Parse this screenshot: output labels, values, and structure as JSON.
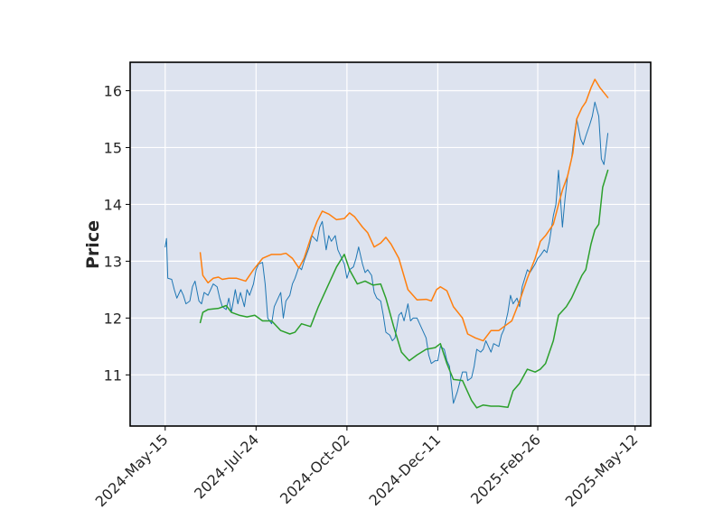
{
  "chart_data": {
    "type": "line",
    "title": "",
    "xlabel": "",
    "ylabel": "Price",
    "x_axis_kind": "date",
    "xlim": [
      "2024-04-18",
      "2025-05-24"
    ],
    "ylim": [
      10.1,
      16.5
    ],
    "grid": true,
    "legend": "none",
    "x_ticks": [
      {
        "date": "2024-05-15",
        "label": "2024-May-15"
      },
      {
        "date": "2024-07-24",
        "label": "2024-Jul-24"
      },
      {
        "date": "2024-10-02",
        "label": "2024-Oct-02"
      },
      {
        "date": "2024-12-11",
        "label": "2024-Dec-11"
      },
      {
        "date": "2025-02-26",
        "label": "2025-Feb-26"
      },
      {
        "date": "2025-05-12",
        "label": "2025-May-12"
      }
    ],
    "y_ticks": [
      {
        "value": 11,
        "label": "11"
      },
      {
        "value": 12,
        "label": "12"
      },
      {
        "value": 13,
        "label": "13"
      },
      {
        "value": 14,
        "label": "14"
      },
      {
        "value": 15,
        "label": "15"
      },
      {
        "value": 16,
        "label": "16"
      }
    ],
    "colors": {
      "plot_background": "#dde3ef",
      "grid": "#ffffff",
      "axes_frame": "#000000"
    },
    "series": [
      {
        "color": "#1f77b4",
        "stroke_width": 1.0,
        "points": [
          [
            "2024-05-15",
            13.25
          ],
          [
            "2024-05-16",
            13.4
          ],
          [
            "2024-05-17",
            12.7
          ],
          [
            "2024-05-20",
            12.68
          ],
          [
            "2024-05-22",
            12.5
          ],
          [
            "2024-05-24",
            12.35
          ],
          [
            "2024-05-27",
            12.5
          ],
          [
            "2024-05-29",
            12.4
          ],
          [
            "2024-05-31",
            12.25
          ],
          [
            "2024-06-03",
            12.3
          ],
          [
            "2024-06-05",
            12.55
          ],
          [
            "2024-06-07",
            12.65
          ],
          [
            "2024-06-10",
            12.3
          ],
          [
            "2024-06-12",
            12.25
          ],
          [
            "2024-06-14",
            12.45
          ],
          [
            "2024-06-17",
            12.4
          ],
          [
            "2024-06-19",
            12.5
          ],
          [
            "2024-06-21",
            12.6
          ],
          [
            "2024-06-24",
            12.55
          ],
          [
            "2024-06-26",
            12.35
          ],
          [
            "2024-06-28",
            12.2
          ],
          [
            "2024-07-01",
            12.15
          ],
          [
            "2024-07-03",
            12.35
          ],
          [
            "2024-07-05",
            12.1
          ],
          [
            "2024-07-08",
            12.5
          ],
          [
            "2024-07-10",
            12.25
          ],
          [
            "2024-07-12",
            12.45
          ],
          [
            "2024-07-15",
            12.2
          ],
          [
            "2024-07-17",
            12.5
          ],
          [
            "2024-07-19",
            12.4
          ],
          [
            "2024-07-22",
            12.6
          ],
          [
            "2024-07-24",
            12.85
          ],
          [
            "2024-07-26",
            12.95
          ],
          [
            "2024-07-29",
            12.98
          ],
          [
            "2024-07-31",
            12.6
          ],
          [
            "2024-08-02",
            12.0
          ],
          [
            "2024-08-05",
            11.9
          ],
          [
            "2024-08-07",
            12.2
          ],
          [
            "2024-08-09",
            12.3
          ],
          [
            "2024-08-12",
            12.45
          ],
          [
            "2024-08-14",
            12.0
          ],
          [
            "2024-08-16",
            12.3
          ],
          [
            "2024-08-19",
            12.4
          ],
          [
            "2024-08-21",
            12.6
          ],
          [
            "2024-08-23",
            12.7
          ],
          [
            "2024-08-26",
            12.9
          ],
          [
            "2024-08-28",
            12.85
          ],
          [
            "2024-08-30",
            13.0
          ],
          [
            "2024-09-03",
            13.25
          ],
          [
            "2024-09-05",
            13.45
          ],
          [
            "2024-09-09",
            13.35
          ],
          [
            "2024-09-11",
            13.6
          ],
          [
            "2024-09-13",
            13.7
          ],
          [
            "2024-09-16",
            13.2
          ],
          [
            "2024-09-18",
            13.45
          ],
          [
            "2024-09-20",
            13.35
          ],
          [
            "2024-09-23",
            13.45
          ],
          [
            "2024-09-25",
            13.2
          ],
          [
            "2024-09-27",
            13.1
          ],
          [
            "2024-09-30",
            12.95
          ],
          [
            "2024-10-02",
            12.7
          ],
          [
            "2024-10-04",
            12.85
          ],
          [
            "2024-10-07",
            12.9
          ],
          [
            "2024-10-09",
            13.05
          ],
          [
            "2024-10-11",
            13.25
          ],
          [
            "2024-10-14",
            12.95
          ],
          [
            "2024-10-16",
            12.8
          ],
          [
            "2024-10-18",
            12.85
          ],
          [
            "2024-10-21",
            12.75
          ],
          [
            "2024-10-23",
            12.45
          ],
          [
            "2024-10-25",
            12.35
          ],
          [
            "2024-10-28",
            12.3
          ],
          [
            "2024-10-30",
            12.05
          ],
          [
            "2024-11-01",
            11.75
          ],
          [
            "2024-11-04",
            11.7
          ],
          [
            "2024-11-06",
            11.6
          ],
          [
            "2024-11-08",
            11.65
          ],
          [
            "2024-11-11",
            12.05
          ],
          [
            "2024-11-13",
            12.1
          ],
          [
            "2024-11-15",
            11.95
          ],
          [
            "2024-11-18",
            12.25
          ],
          [
            "2024-11-20",
            11.95
          ],
          [
            "2024-11-22",
            12.0
          ],
          [
            "2024-11-25",
            12.0
          ],
          [
            "2024-11-27",
            11.9
          ],
          [
            "2024-12-02",
            11.65
          ],
          [
            "2024-12-04",
            11.35
          ],
          [
            "2024-12-06",
            11.2
          ],
          [
            "2024-12-09",
            11.25
          ],
          [
            "2024-12-11",
            11.25
          ],
          [
            "2024-12-13",
            11.5
          ],
          [
            "2024-12-16",
            11.45
          ],
          [
            "2024-12-18",
            11.25
          ],
          [
            "2024-12-20",
            11.15
          ],
          [
            "2024-12-23",
            10.5
          ],
          [
            "2024-12-26",
            10.7
          ],
          [
            "2024-12-30",
            11.05
          ],
          [
            "2025-01-02",
            11.05
          ],
          [
            "2025-01-03",
            10.9
          ],
          [
            "2025-01-06",
            10.95
          ],
          [
            "2025-01-08",
            11.15
          ],
          [
            "2025-01-10",
            11.45
          ],
          [
            "2025-01-13",
            11.4
          ],
          [
            "2025-01-15",
            11.45
          ],
          [
            "2025-01-17",
            11.6
          ],
          [
            "2025-01-21",
            11.4
          ],
          [
            "2025-01-23",
            11.55
          ],
          [
            "2025-01-27",
            11.5
          ],
          [
            "2025-01-29",
            11.7
          ],
          [
            "2025-01-31",
            11.8
          ],
          [
            "2025-02-03",
            12.1
          ],
          [
            "2025-02-05",
            12.4
          ],
          [
            "2025-02-07",
            12.25
          ],
          [
            "2025-02-10",
            12.35
          ],
          [
            "2025-02-12",
            12.2
          ],
          [
            "2025-02-14",
            12.55
          ],
          [
            "2025-02-18",
            12.85
          ],
          [
            "2025-02-20",
            12.8
          ],
          [
            "2025-02-24",
            12.95
          ],
          [
            "2025-02-26",
            13.05
          ],
          [
            "2025-02-28",
            13.1
          ],
          [
            "2025-03-03",
            13.2
          ],
          [
            "2025-03-05",
            13.15
          ],
          [
            "2025-03-07",
            13.35
          ],
          [
            "2025-03-10",
            13.8
          ],
          [
            "2025-03-12",
            14.0
          ],
          [
            "2025-03-14",
            14.6
          ],
          [
            "2025-03-17",
            13.6
          ],
          [
            "2025-03-19",
            14.1
          ],
          [
            "2025-03-21",
            14.5
          ],
          [
            "2025-03-24",
            14.8
          ],
          [
            "2025-03-26",
            15.2
          ],
          [
            "2025-03-28",
            15.5
          ],
          [
            "2025-03-31",
            15.15
          ],
          [
            "2025-04-02",
            15.05
          ],
          [
            "2025-04-04",
            15.2
          ],
          [
            "2025-04-07",
            15.4
          ],
          [
            "2025-04-09",
            15.55
          ],
          [
            "2025-04-11",
            15.8
          ],
          [
            "2025-04-14",
            15.55
          ],
          [
            "2025-04-16",
            14.8
          ],
          [
            "2025-04-18",
            14.7
          ],
          [
            "2025-04-21",
            15.25
          ]
        ]
      },
      {
        "color": "#ff7f0e",
        "stroke_width": 1.5,
        "points": [
          [
            "2024-06-11",
            13.15
          ],
          [
            "2024-06-13",
            12.75
          ],
          [
            "2024-06-17",
            12.62
          ],
          [
            "2024-06-21",
            12.7
          ],
          [
            "2024-06-25",
            12.72
          ],
          [
            "2024-06-28",
            12.68
          ],
          [
            "2024-07-03",
            12.7
          ],
          [
            "2024-07-09",
            12.7
          ],
          [
            "2024-07-16",
            12.65
          ],
          [
            "2024-07-22",
            12.85
          ],
          [
            "2024-07-29",
            13.05
          ],
          [
            "2024-08-05",
            13.12
          ],
          [
            "2024-08-12",
            13.12
          ],
          [
            "2024-08-16",
            13.14
          ],
          [
            "2024-08-21",
            13.05
          ],
          [
            "2024-08-26",
            12.88
          ],
          [
            "2024-08-30",
            13.05
          ],
          [
            "2024-09-04",
            13.4
          ],
          [
            "2024-09-09",
            13.7
          ],
          [
            "2024-09-13",
            13.88
          ],
          [
            "2024-09-18",
            13.83
          ],
          [
            "2024-09-24",
            13.73
          ],
          [
            "2024-09-30",
            13.75
          ],
          [
            "2024-10-04",
            13.85
          ],
          [
            "2024-10-08",
            13.78
          ],
          [
            "2024-10-14",
            13.6
          ],
          [
            "2024-10-18",
            13.5
          ],
          [
            "2024-10-23",
            13.25
          ],
          [
            "2024-10-28",
            13.32
          ],
          [
            "2024-11-01",
            13.42
          ],
          [
            "2024-11-05",
            13.3
          ],
          [
            "2024-11-11",
            13.05
          ],
          [
            "2024-11-18",
            12.5
          ],
          [
            "2024-11-25",
            12.32
          ],
          [
            "2024-12-02",
            12.33
          ],
          [
            "2024-12-06",
            12.3
          ],
          [
            "2024-12-10",
            12.5
          ],
          [
            "2024-12-13",
            12.55
          ],
          [
            "2024-12-18",
            12.48
          ],
          [
            "2024-12-23",
            12.2
          ],
          [
            "2024-12-30",
            12.0
          ],
          [
            "2025-01-03",
            11.72
          ],
          [
            "2025-01-09",
            11.65
          ],
          [
            "2025-01-15",
            11.6
          ],
          [
            "2025-01-21",
            11.78
          ],
          [
            "2025-01-27",
            11.78
          ],
          [
            "2025-01-31",
            11.85
          ],
          [
            "2025-02-06",
            11.95
          ],
          [
            "2025-02-12",
            12.3
          ],
          [
            "2025-02-18",
            12.7
          ],
          [
            "2025-02-24",
            13.05
          ],
          [
            "2025-02-28",
            13.35
          ],
          [
            "2025-03-04",
            13.45
          ],
          [
            "2025-03-10",
            13.65
          ],
          [
            "2025-03-14",
            14.0
          ],
          [
            "2025-03-17",
            14.25
          ],
          [
            "2025-03-21",
            14.5
          ],
          [
            "2025-03-25",
            14.9
          ],
          [
            "2025-03-28",
            15.5
          ],
          [
            "2025-04-01",
            15.7
          ],
          [
            "2025-04-04",
            15.8
          ],
          [
            "2025-04-08",
            16.05
          ],
          [
            "2025-04-11",
            16.2
          ],
          [
            "2025-04-15",
            16.05
          ],
          [
            "2025-04-21",
            15.88
          ]
        ]
      },
      {
        "color": "#2ca02c",
        "stroke_width": 1.5,
        "points": [
          [
            "2024-06-11",
            11.92
          ],
          [
            "2024-06-13",
            12.1
          ],
          [
            "2024-06-17",
            12.15
          ],
          [
            "2024-06-25",
            12.17
          ],
          [
            "2024-07-01",
            12.22
          ],
          [
            "2024-07-05",
            12.1
          ],
          [
            "2024-07-11",
            12.05
          ],
          [
            "2024-07-17",
            12.02
          ],
          [
            "2024-07-23",
            12.05
          ],
          [
            "2024-07-29",
            11.95
          ],
          [
            "2024-08-05",
            11.95
          ],
          [
            "2024-08-12",
            11.78
          ],
          [
            "2024-08-19",
            11.72
          ],
          [
            "2024-08-23",
            11.75
          ],
          [
            "2024-08-28",
            11.9
          ],
          [
            "2024-09-04",
            11.85
          ],
          [
            "2024-09-10",
            12.2
          ],
          [
            "2024-09-17",
            12.55
          ],
          [
            "2024-09-24",
            12.9
          ],
          [
            "2024-09-30",
            13.12
          ],
          [
            "2024-10-04",
            12.85
          ],
          [
            "2024-10-10",
            12.6
          ],
          [
            "2024-10-16",
            12.65
          ],
          [
            "2024-10-22",
            12.58
          ],
          [
            "2024-10-28",
            12.6
          ],
          [
            "2024-11-01",
            12.35
          ],
          [
            "2024-11-07",
            11.85
          ],
          [
            "2024-11-13",
            11.4
          ],
          [
            "2024-11-19",
            11.25
          ],
          [
            "2024-11-25",
            11.35
          ],
          [
            "2024-12-02",
            11.45
          ],
          [
            "2024-12-09",
            11.48
          ],
          [
            "2024-12-13",
            11.55
          ],
          [
            "2024-12-18",
            11.2
          ],
          [
            "2024-12-23",
            10.92
          ],
          [
            "2024-12-30",
            10.9
          ],
          [
            "2025-01-06",
            10.55
          ],
          [
            "2025-01-10",
            10.42
          ],
          [
            "2025-01-15",
            10.47
          ],
          [
            "2025-01-21",
            10.45
          ],
          [
            "2025-01-27",
            10.45
          ],
          [
            "2025-02-03",
            10.43
          ],
          [
            "2025-02-07",
            10.72
          ],
          [
            "2025-02-12",
            10.85
          ],
          [
            "2025-02-18",
            11.1
          ],
          [
            "2025-02-24",
            11.05
          ],
          [
            "2025-02-28",
            11.1
          ],
          [
            "2025-03-04",
            11.2
          ],
          [
            "2025-03-10",
            11.6
          ],
          [
            "2025-03-14",
            12.05
          ],
          [
            "2025-03-20",
            12.2
          ],
          [
            "2025-03-24",
            12.35
          ],
          [
            "2025-03-28",
            12.55
          ],
          [
            "2025-04-01",
            12.75
          ],
          [
            "2025-04-04",
            12.85
          ],
          [
            "2025-04-08",
            13.3
          ],
          [
            "2025-04-11",
            13.55
          ],
          [
            "2025-04-14",
            13.65
          ],
          [
            "2025-04-17",
            14.3
          ],
          [
            "2025-04-21",
            14.6
          ]
        ]
      }
    ]
  }
}
